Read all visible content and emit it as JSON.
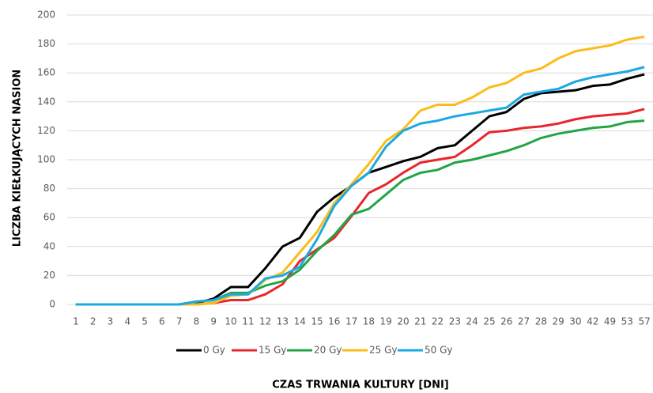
{
  "chart_data": {
    "type": "line",
    "y_label": "LICZBA KIEŁKUJĄCYCH NASION",
    "x_label": "CZAS TRWANIA KULTURY [DNI]",
    "categories": [
      "1",
      "2",
      "3",
      "4",
      "5",
      "6",
      "7",
      "8",
      "9",
      "10",
      "11",
      "12",
      "13",
      "14",
      "15",
      "16",
      "17",
      "18",
      "19",
      "20",
      "21",
      "22",
      "23",
      "24",
      "25",
      "26",
      "27",
      "28",
      "29",
      "30",
      "42",
      "49",
      "53",
      "57"
    ],
    "ylim": [
      0,
      200
    ],
    "yticks": [
      0,
      20,
      40,
      60,
      80,
      100,
      120,
      140,
      160,
      180,
      200
    ],
    "grid": true,
    "legend": "bottom",
    "series": [
      {
        "name": "0 Gy",
        "color": "#000000",
        "values": [
          0,
          0,
          0,
          0,
          0,
          0,
          0,
          1,
          4,
          12,
          12,
          25,
          40,
          46,
          64,
          74,
          82,
          91,
          95,
          99,
          102,
          108,
          110,
          120,
          130,
          133,
          142,
          146,
          147,
          148,
          151,
          152,
          156,
          159
        ]
      },
      {
        "name": "15 Gy",
        "color": "#e8262d",
        "values": [
          0,
          0,
          0,
          0,
          0,
          0,
          0,
          0,
          1,
          3,
          3,
          7,
          14,
          30,
          38,
          46,
          61,
          77,
          83,
          91,
          98,
          100,
          102,
          110,
          119,
          120,
          122,
          123,
          125,
          128,
          130,
          131,
          132,
          135
        ]
      },
      {
        "name": "20 Gy",
        "color": "#22a546",
        "values": [
          0,
          0,
          0,
          0,
          0,
          0,
          0,
          2,
          3,
          8,
          8,
          13,
          16,
          24,
          37,
          48,
          62,
          66,
          76,
          86,
          91,
          93,
          98,
          100,
          103,
          106,
          110,
          115,
          118,
          120,
          122,
          123,
          126,
          127
        ]
      },
      {
        "name": "25 Gy",
        "color": "#fbbc1a",
        "values": [
          0,
          0,
          0,
          0,
          0,
          0,
          0,
          0,
          1,
          6,
          7,
          17,
          22,
          36,
          50,
          70,
          83,
          97,
          113,
          121,
          134,
          138,
          138,
          143,
          150,
          153,
          160,
          163,
          170,
          175,
          177,
          179,
          183,
          185
        ]
      },
      {
        "name": "50 Gy",
        "color": "#1ba9e1",
        "values": [
          0,
          0,
          0,
          0,
          0,
          0,
          0,
          2,
          3,
          7,
          7,
          18,
          20,
          26,
          45,
          68,
          82,
          91,
          109,
          120,
          125,
          127,
          130,
          132,
          134,
          136,
          145,
          147,
          149,
          154,
          157,
          159,
          161,
          164
        ]
      }
    ]
  }
}
